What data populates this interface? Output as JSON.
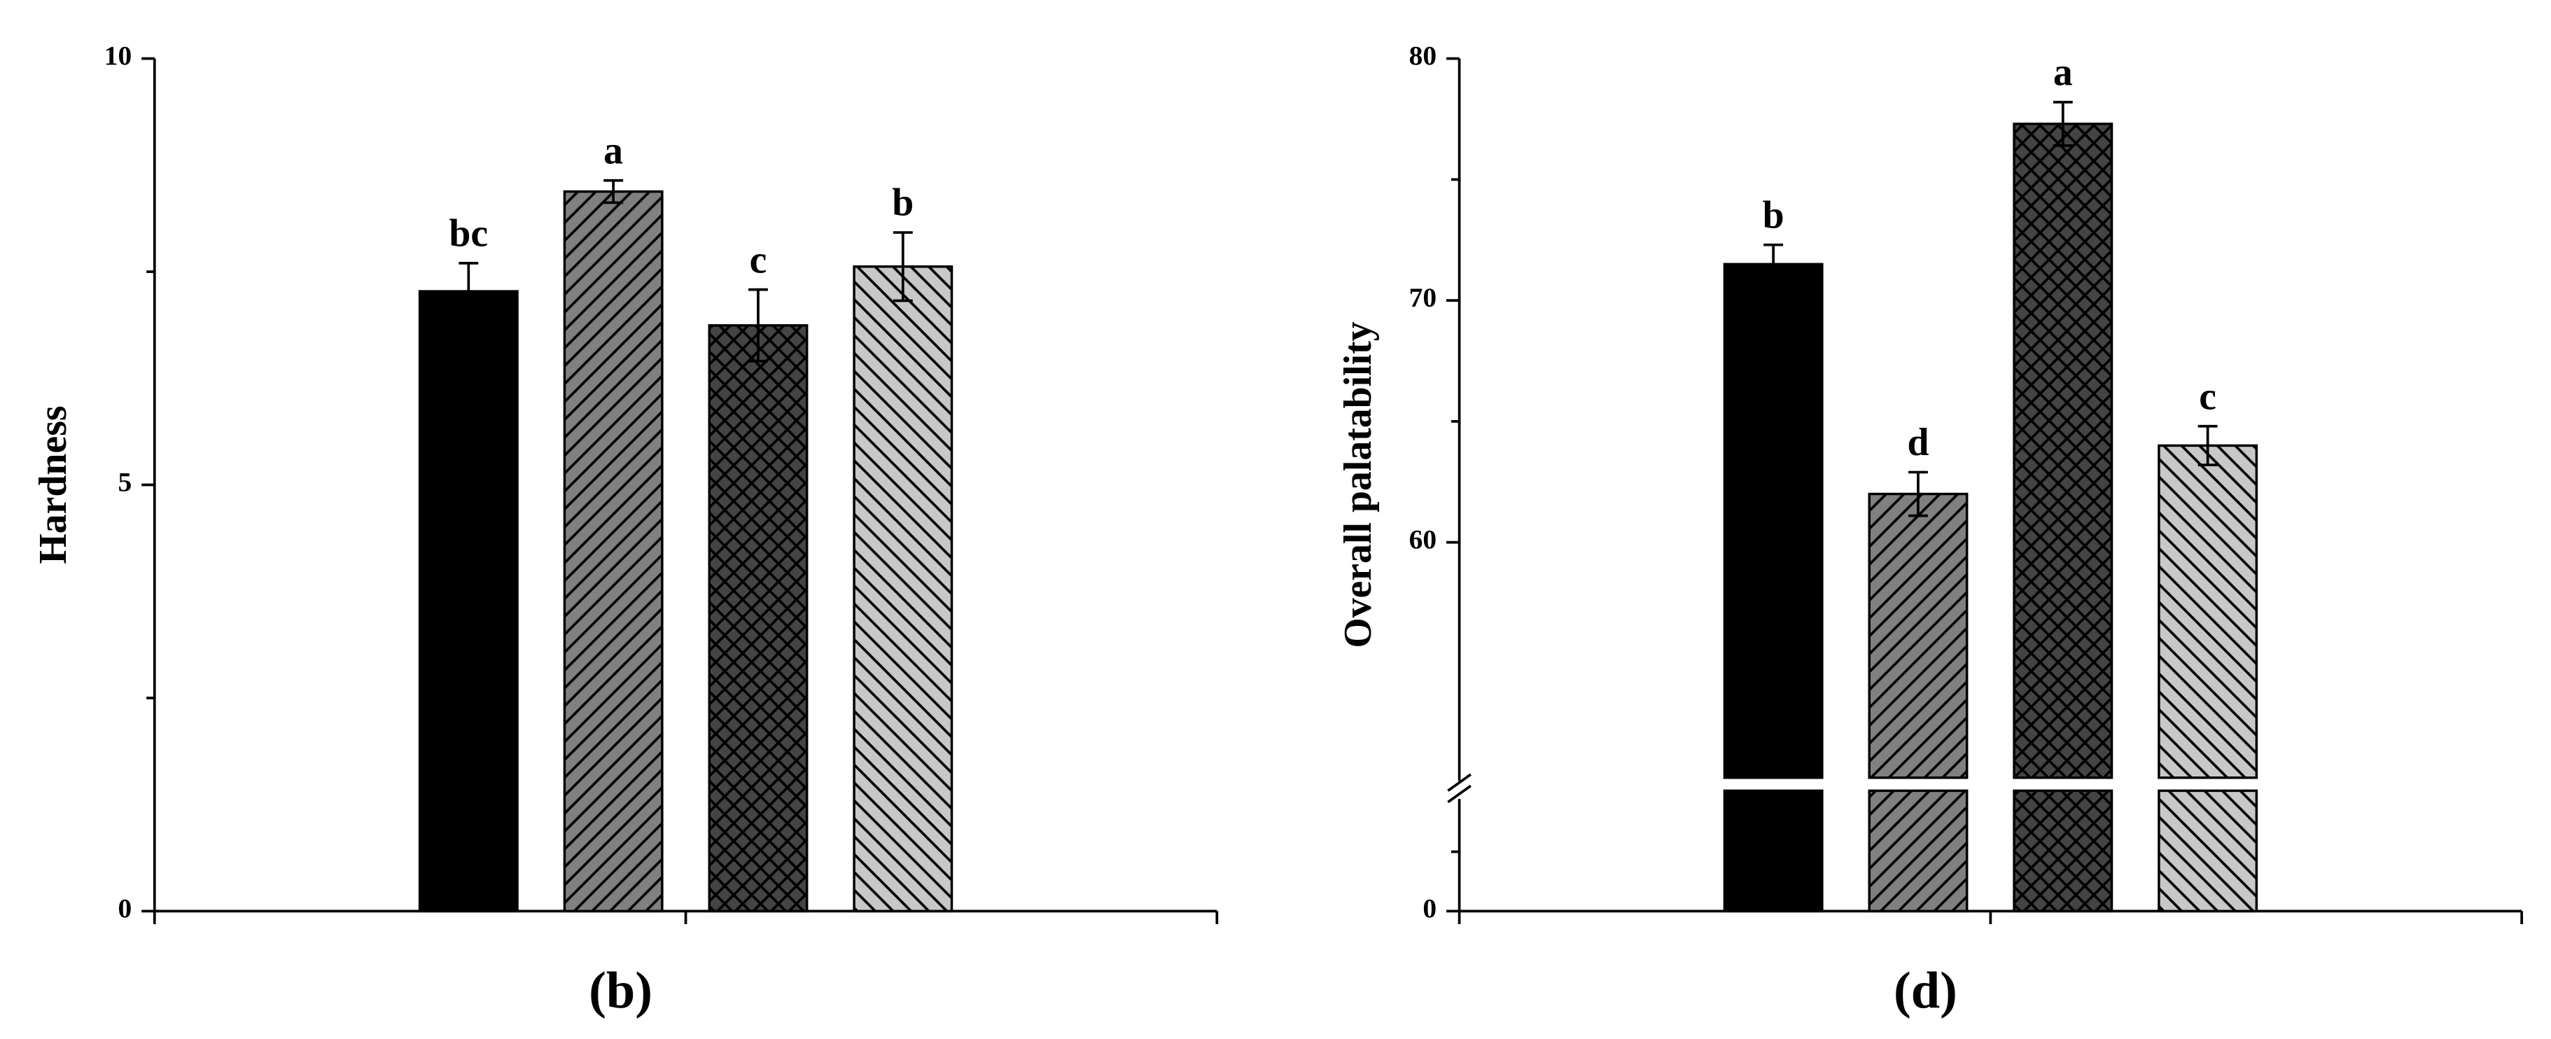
{
  "chart_data": [
    {
      "type": "bar",
      "ylabel": "Hardness",
      "subtitle": "(b)",
      "values": [
        7.27,
        8.44,
        6.87,
        7.56
      ],
      "errors": [
        0.33,
        0.13,
        0.42,
        0.4
      ],
      "annotations": [
        "bc",
        "a",
        "c",
        "b"
      ],
      "colors": [
        "#000000",
        "#808080",
        "#444444",
        "#c8c8c8"
      ],
      "patterns": [
        "solid",
        "forward-diagonal",
        "crosshatch",
        "back-diagonal"
      ],
      "ylim": [
        0,
        10
      ],
      "yticks": [
        0,
        5,
        10
      ],
      "minor_yticks": [
        2.5,
        7.5
      ]
    },
    {
      "type": "bar",
      "ylabel": "Overall palatability",
      "subtitle": "(d)",
      "values": [
        71.5,
        62.0,
        77.3,
        64.0
      ],
      "errors": [
        0.8,
        0.9,
        0.9,
        0.8
      ],
      "annotations": [
        "b",
        "d",
        "a",
        "c"
      ],
      "colors": [
        "#000000",
        "#808080",
        "#444444",
        "#c8c8c8"
      ],
      "patterns": [
        "solid",
        "forward-diagonal",
        "crosshatch",
        "back-diagonal"
      ],
      "ylim": [
        0,
        80
      ],
      "ybreak": [
        10,
        50
      ],
      "yticks": [
        0,
        60,
        70,
        80
      ],
      "minor_yticks": [
        5,
        65,
        75
      ]
    }
  ]
}
